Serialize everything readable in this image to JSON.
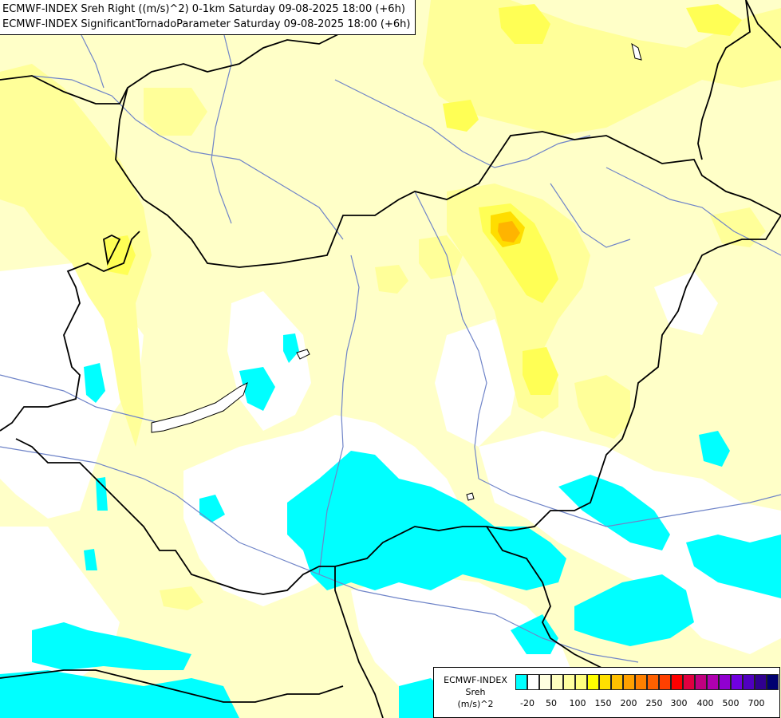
{
  "header": {
    "line1": "ECMWF-INDEX Sreh Right ((m/s)^2) 0-1km Saturday 09-08-2025 18:00 (+6h)",
    "line2": "ECMWF-INDEX SignificantTornadoParameter Saturday 09-08-2025 18:00 (+6h)"
  },
  "legend": {
    "source": "ECMWF-INDEX",
    "variable": "Sreh",
    "unit": "(m/s)^2",
    "colors": [
      "#00ffff",
      "#ffffff",
      "#ffffe0",
      "#ffffc0",
      "#ffffa0",
      "#ffff80",
      "#ffff00",
      "#ffe000",
      "#ffc000",
      "#ffa000",
      "#ff8000",
      "#ff6000",
      "#ff4000",
      "#ff0000",
      "#e00040",
      "#c00080",
      "#b000b0",
      "#9000d0",
      "#7000e0",
      "#5000c0",
      "#300090",
      "#000070"
    ],
    "ticks": [
      "-20",
      "50",
      "100",
      "150",
      "200",
      "250",
      "300",
      "400",
      "500",
      "700"
    ]
  },
  "map_colors": {
    "cyan": "#00ffff",
    "light_yellow": "#ffffc8",
    "yellow": "#ffff99",
    "medium_yellow": "#ffff66",
    "bright_yellow": "#ffee00",
    "orange": "#ffbb00",
    "border": "#000000",
    "river": "#6f84c8"
  }
}
